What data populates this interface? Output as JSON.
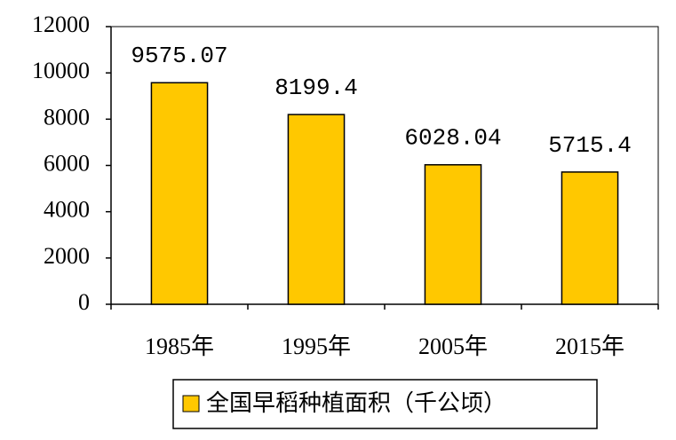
{
  "chart_data": {
    "type": "bar",
    "categories": [
      "1985年",
      "1995年",
      "2005年",
      "2015年"
    ],
    "series": [
      {
        "name": "全国早稻种植面积（千公顷）",
        "color": "#ffc800",
        "values": [
          9575.07,
          8199.4,
          6028.04,
          5715.4
        ]
      }
    ],
    "ylim": [
      0,
      12000
    ],
    "yticks": [
      0,
      2000,
      4000,
      6000,
      8000,
      10000,
      12000
    ],
    "grid": false,
    "legend": "bottom"
  }
}
